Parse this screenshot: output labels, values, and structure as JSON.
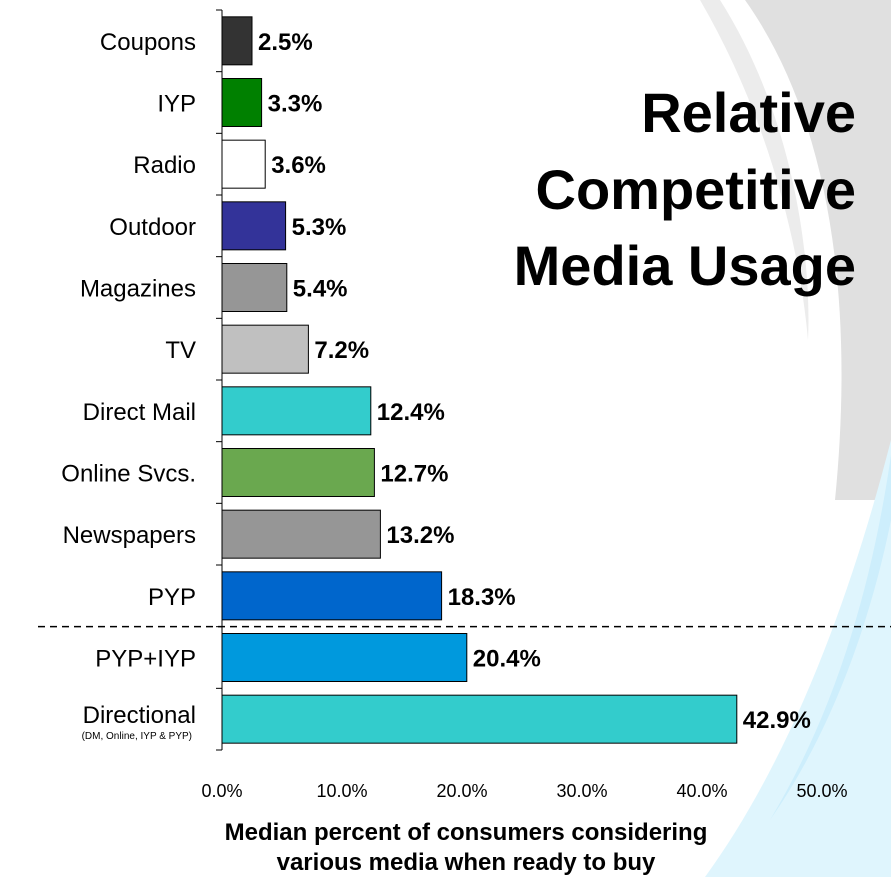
{
  "chart_data": {
    "type": "bar",
    "orientation": "horizontal",
    "title": "Relative Competitive Media Usage",
    "title_lines": [
      "Relative",
      "Competitive",
      "Media Usage"
    ],
    "xlabel": "Median percent of consumers considering various media when ready to buy",
    "xlabel_lines": [
      "Median percent of consumers considering",
      "various media when ready to buy"
    ],
    "ylabel": "",
    "xlim": [
      0,
      50
    ],
    "xticks": [
      "0.0%",
      "10.0%",
      "20.0%",
      "30.0%",
      "40.0%",
      "50.0%"
    ],
    "grid": false,
    "legend": "none",
    "bars": [
      {
        "category": "Coupons",
        "value": 2.5,
        "label": "2.5%",
        "color": "#333333"
      },
      {
        "category": "IYP",
        "value": 3.3,
        "label": "3.3%",
        "color": "#008000"
      },
      {
        "category": "Radio",
        "value": 3.6,
        "label": "3.6%",
        "color": "#ffffff"
      },
      {
        "category": "Outdoor",
        "value": 5.3,
        "label": "5.3%",
        "color": "#333399"
      },
      {
        "category": "Magazines",
        "value": 5.4,
        "label": "5.4%",
        "color": "#969696"
      },
      {
        "category": "TV",
        "value": 7.2,
        "label": "7.2%",
        "color": "#c0c0c0"
      },
      {
        "category": "Direct Mail",
        "value": 12.4,
        "label": "12.4%",
        "color": "#33cccc"
      },
      {
        "category": "Online Svcs.",
        "value": 12.7,
        "label": "12.7%",
        "color": "#6aa84f"
      },
      {
        "category": "Newspapers",
        "value": 13.2,
        "label": "13.2%",
        "color": "#969696"
      },
      {
        "category": "PYP",
        "value": 18.3,
        "label": "18.3%",
        "color": "#0066cc"
      },
      {
        "category": "PYP+IYP",
        "value": 20.4,
        "label": "20.4%",
        "color": "#0099dd"
      },
      {
        "category": "Directional",
        "subcategory": "(DM, Online, IYP & PYP)",
        "value": 42.9,
        "label": "42.9%",
        "color": "#33cccc"
      }
    ],
    "divider": {
      "after_category": "PYP",
      "style": "dashed"
    }
  }
}
